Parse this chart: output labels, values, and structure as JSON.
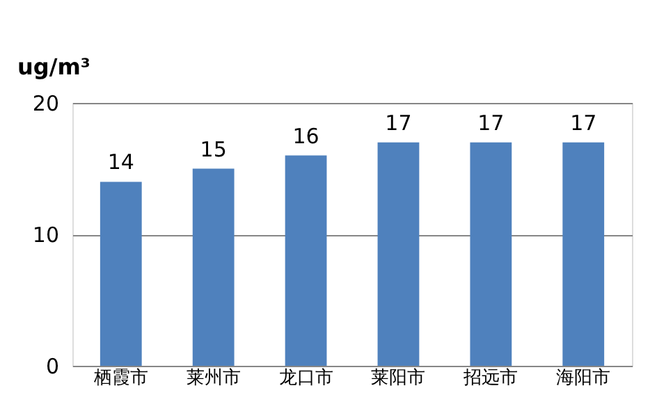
{
  "chart_data": {
    "type": "bar",
    "ylabel": "ug/m³",
    "categories": [
      "栖霞市",
      "莱州市",
      "龙口市",
      "莱阳市",
      "招远市",
      "海阳市"
    ],
    "values": [
      14,
      15,
      16,
      17,
      17,
      17
    ],
    "color": "#4f81bd",
    "ylim": [
      0,
      20
    ],
    "yticks": [
      0,
      10,
      20
    ],
    "grid": "y",
    "data_labels": true
  }
}
